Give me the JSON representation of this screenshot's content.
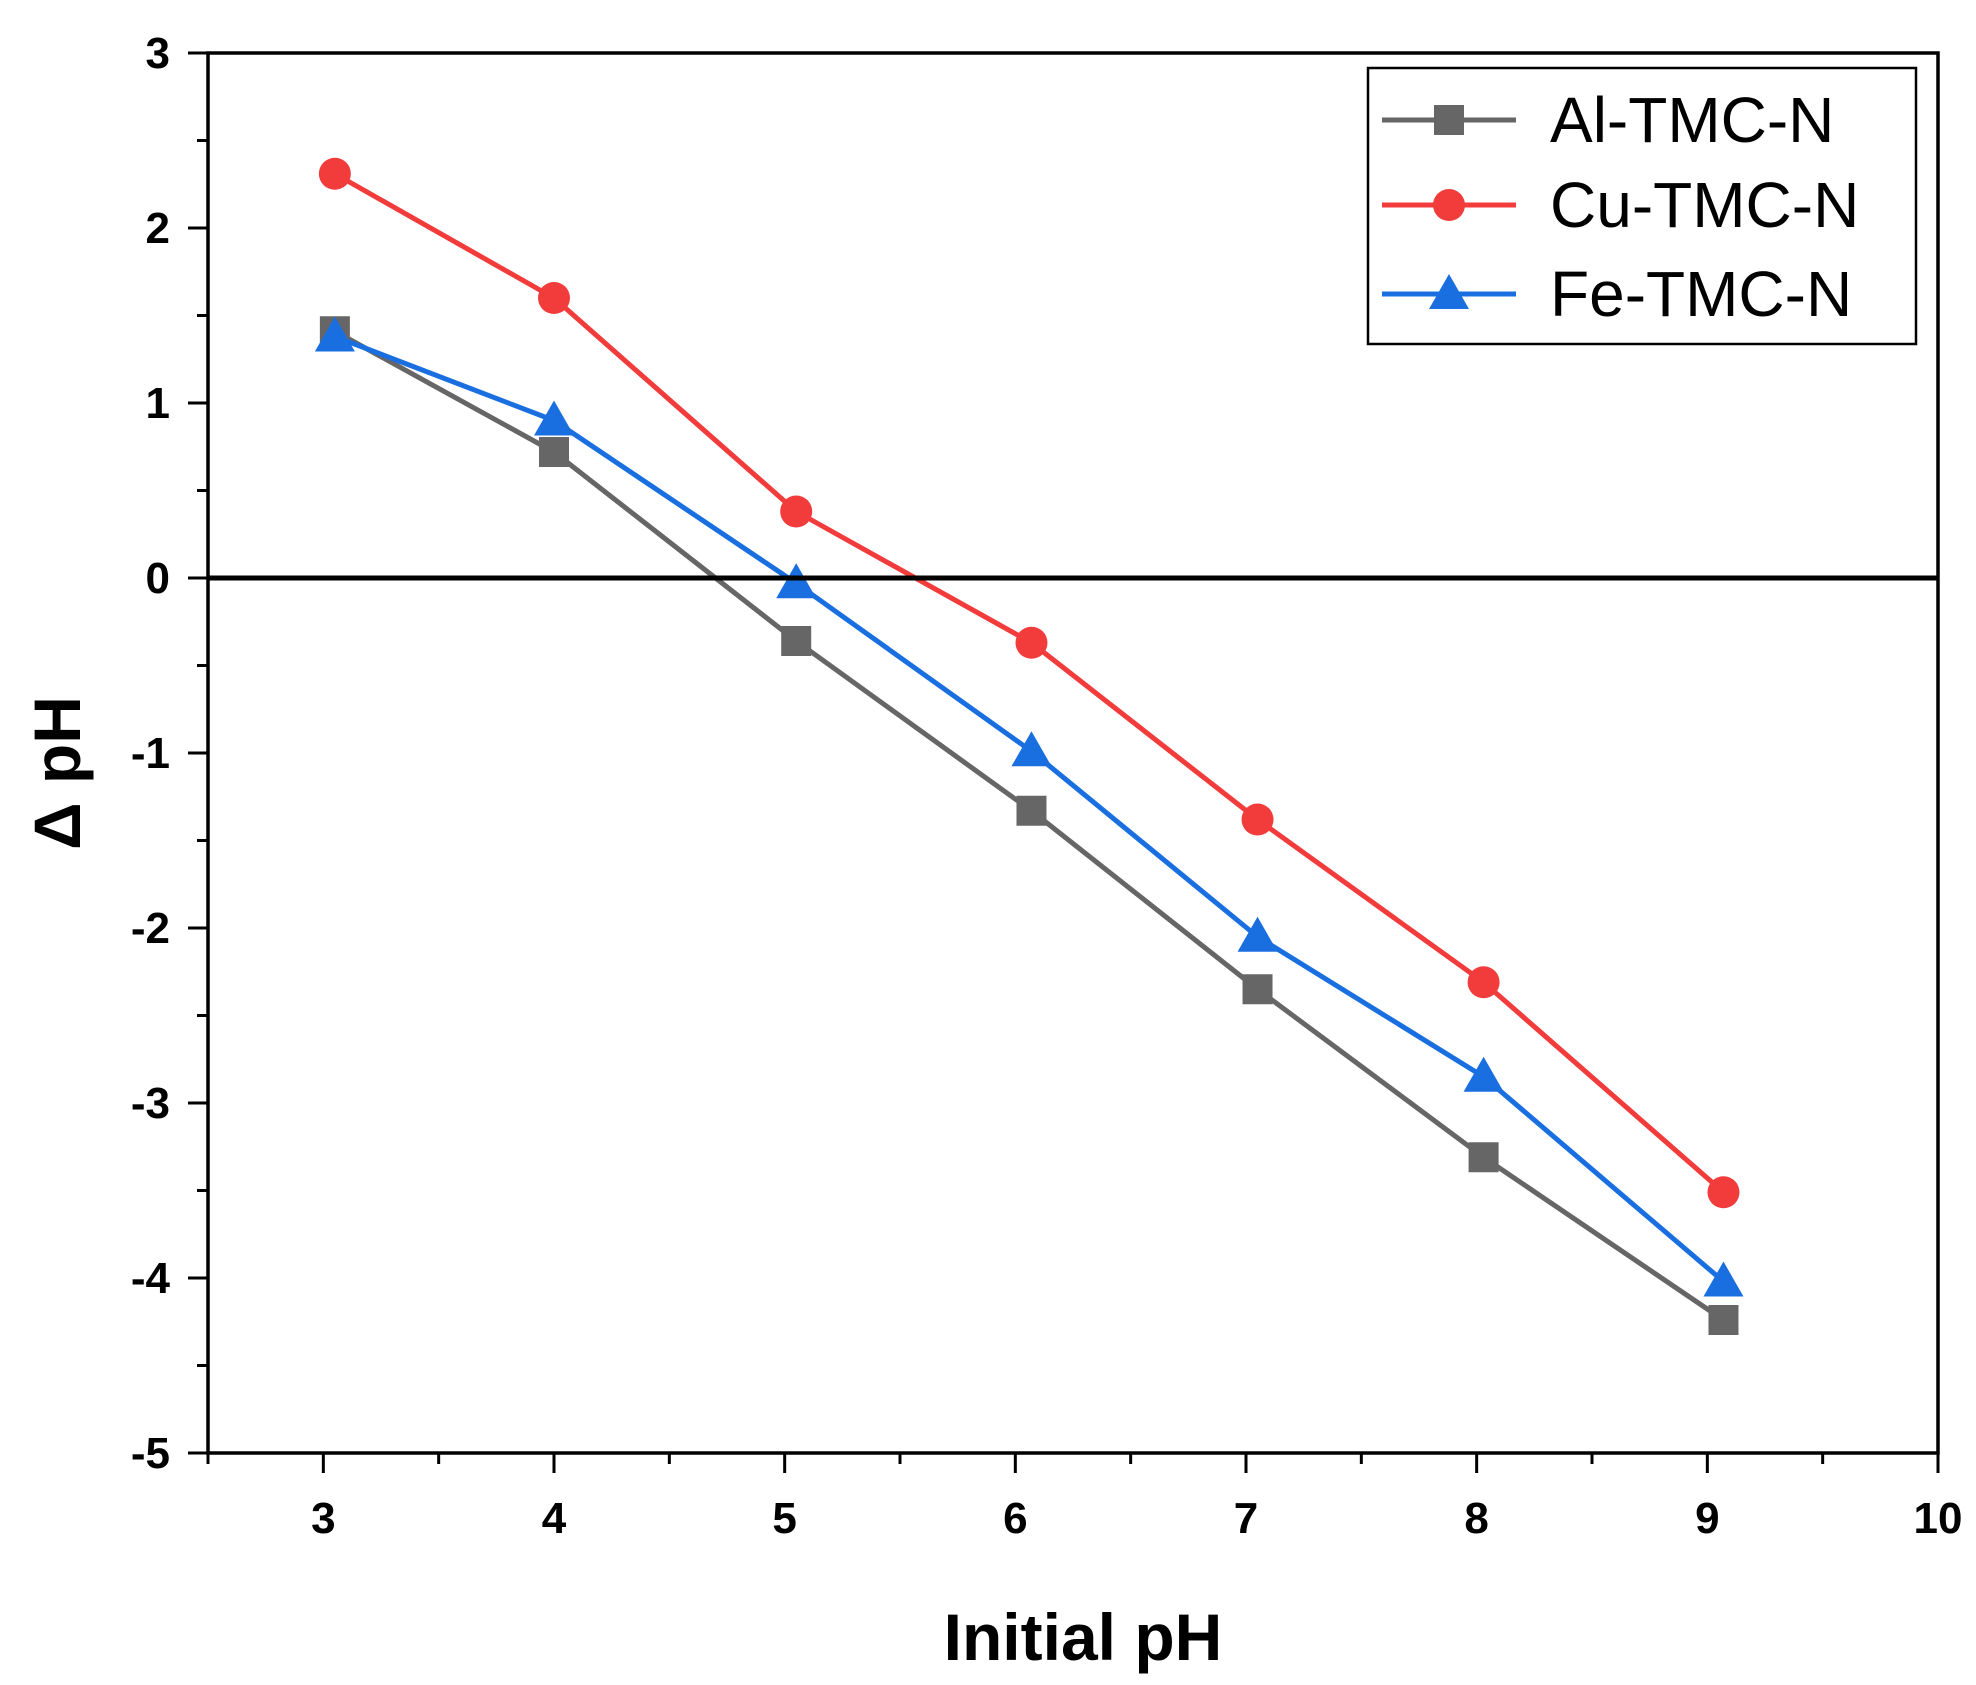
{
  "chart_data": {
    "type": "line",
    "title": "",
    "xlabel": "Initial pH",
    "ylabel": "Δ pH",
    "xlim": [
      2.5,
      10
    ],
    "ylim": [
      -5,
      3
    ],
    "xticks": [
      3,
      4,
      5,
      6,
      7,
      8,
      9,
      10
    ],
    "yticks": [
      -5,
      -4,
      -3,
      -2,
      -1,
      0,
      1,
      2,
      3
    ],
    "xtick_labels": [
      "3",
      "4",
      "5",
      "6",
      "7",
      "8",
      "9",
      "10"
    ],
    "ytick_labels": [
      "-5",
      "-4",
      "-3",
      "-2",
      "-1",
      "0",
      "1",
      "2",
      "3"
    ],
    "reference_line_y": 0,
    "grid": false,
    "legend_position": "top-right",
    "series": [
      {
        "name": "Al-TMC-N",
        "color": "#666666",
        "marker": "square",
        "x": [
          3.05,
          4.0,
          5.05,
          6.07,
          7.05,
          8.03,
          9.07
        ],
        "y": [
          1.41,
          0.72,
          -0.36,
          -1.33,
          -2.35,
          -3.31,
          -4.24
        ]
      },
      {
        "name": "Cu-TMC-N",
        "color": "#f23b3b",
        "marker": "circle",
        "x": [
          3.05,
          4.0,
          5.05,
          6.07,
          7.05,
          8.03,
          9.07
        ],
        "y": [
          2.31,
          1.6,
          0.38,
          -0.37,
          -1.38,
          -2.31,
          -3.51
        ]
      },
      {
        "name": "Fe-TMC-N",
        "color": "#1a6fe0",
        "marker": "triangle",
        "x": [
          3.05,
          4.0,
          5.05,
          6.07,
          7.05,
          8.03,
          9.07
        ],
        "y": [
          1.38,
          0.9,
          -0.03,
          -0.99,
          -2.05,
          -2.85,
          -4.02
        ]
      }
    ]
  }
}
